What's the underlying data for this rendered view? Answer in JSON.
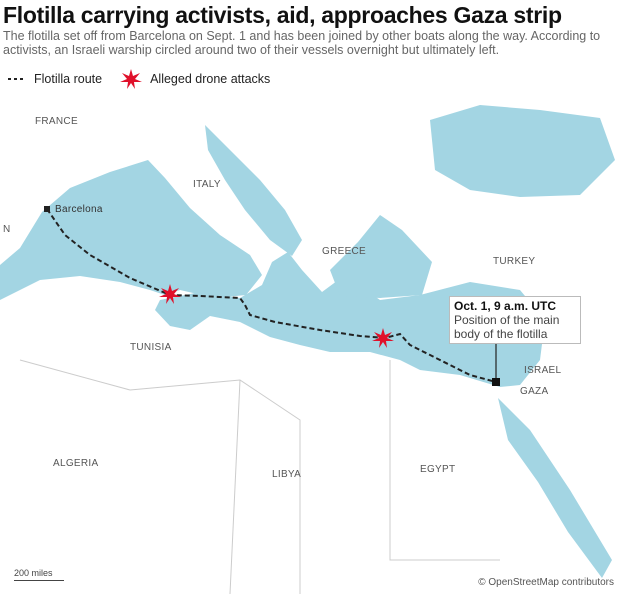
{
  "title": "Flotilla carrying activists, aid, approaches Gaza strip",
  "subtitle": "The flotilla set off from Barcelona on Sept. 1 and has been joined by other boats along the way. According to activists, an Israeli warship circled around two of their vessels overnight but ultimately left.",
  "legend": {
    "route": "Flotilla route",
    "attacks": "Alleged drone attacks"
  },
  "labels": {
    "france": "FRANCE",
    "italy": "ITALY",
    "greece": "GREECE",
    "turkey": "TURKEY",
    "tunisia": "TUNISIA",
    "israel": "ISRAEL",
    "gaza": "GAZA",
    "algeria": "ALGERIA",
    "libya": "LIBYA",
    "egypt": "EGYPT",
    "n": "N",
    "barcelona": "Barcelona"
  },
  "callout": {
    "title": "Oct. 1, 9 a.m. UTC",
    "text": "Position of the main body of the flotilla"
  },
  "scale": "200 miles",
  "credit": "© OpenStreetMap contributors",
  "colors": {
    "sea": "#a3d5e3",
    "route": "#222222",
    "attack": "#e0102a"
  }
}
